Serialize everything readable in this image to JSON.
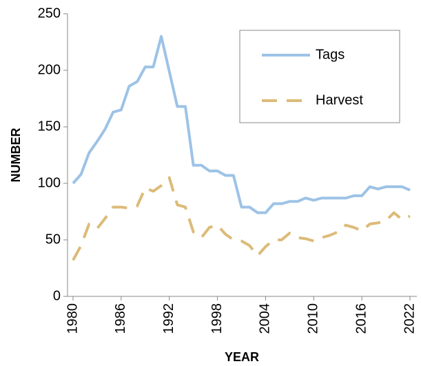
{
  "chart_data": {
    "type": "line",
    "x_label": "YEAR",
    "y_label": "NUMBER",
    "x": [
      1980,
      1981,
      1982,
      1983,
      1984,
      1985,
      1986,
      1987,
      1988,
      1989,
      1990,
      1991,
      1992,
      1993,
      1994,
      1995,
      1996,
      1997,
      1998,
      1999,
      2000,
      2001,
      2002,
      2003,
      2004,
      2005,
      2006,
      2007,
      2008,
      2009,
      2010,
      2011,
      2012,
      2013,
      2014,
      2015,
      2016,
      2017,
      2018,
      2019,
      2020,
      2021,
      2022
    ],
    "series": [
      {
        "name": "Tags",
        "color": "#9dc3e6",
        "dash": false,
        "values": [
          100,
          108,
          127,
          137,
          148,
          163,
          165,
          186,
          190,
          203,
          203,
          230,
          199,
          168,
          168,
          116,
          116,
          111,
          111,
          107,
          107,
          79,
          79,
          74,
          74,
          82,
          82,
          84,
          84,
          87,
          85,
          87,
          87,
          87,
          87,
          89,
          89,
          97,
          95,
          97,
          97,
          97,
          94
        ]
      },
      {
        "name": "Harvest",
        "color": "#dcbb78",
        "dash": true,
        "values": [
          32,
          45,
          64,
          60,
          69,
          79,
          79,
          78,
          80,
          96,
          93,
          98,
          105,
          81,
          79,
          57,
          52,
          61,
          63,
          55,
          50,
          49,
          45,
          36,
          44,
          50,
          50,
          56,
          52,
          51,
          49,
          52,
          54,
          57,
          63,
          61,
          58,
          64,
          65,
          67,
          74,
          68,
          71
        ]
      }
    ],
    "xlim": [
      1980,
      2022
    ],
    "xticks": [
      1980,
      1986,
      1992,
      1998,
      2004,
      2010,
      2016,
      2022
    ],
    "ylim": [
      0,
      250
    ],
    "yticks": [
      0,
      50,
      100,
      150,
      200,
      250
    ],
    "grid": false,
    "legend": "upper right"
  }
}
